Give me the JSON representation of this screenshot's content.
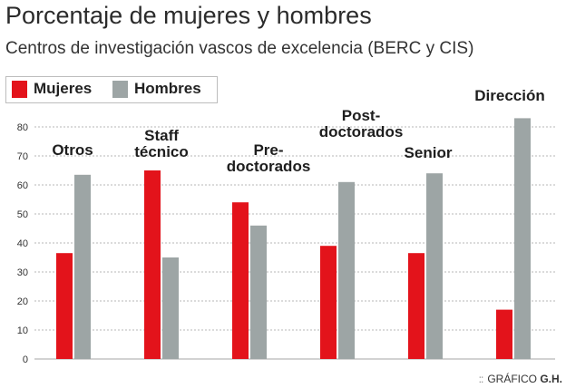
{
  "title": "Porcentaje de mujeres y hombres",
  "subtitle": "Centros de investigación vascos de excelencia (BERC y CIS)",
  "credit": {
    "prefix": "GRÁFICO",
    "name": "G.H."
  },
  "colors": {
    "mujeres": "#e3131b",
    "hombres": "#9da5a5",
    "grid": "#b7b7b7"
  },
  "chart_data": {
    "type": "bar",
    "categories": [
      "Otros",
      "Staff técnico",
      "Pre-doctorados",
      "Post-doctorados",
      "Senior",
      "Dirección"
    ],
    "category_label_lines": [
      [
        "Otros"
      ],
      [
        "Staff",
        "técnico"
      ],
      [
        "Pre-",
        "doctorados"
      ],
      [
        "Post-",
        "doctorados"
      ],
      [
        "Senior"
      ],
      [
        "Dirección"
      ]
    ],
    "series": [
      {
        "name": "Mujeres",
        "values": [
          36.5,
          65,
          54,
          39,
          36.5,
          17
        ]
      },
      {
        "name": "Hombres",
        "values": [
          63.5,
          35,
          46,
          61,
          64,
          83
        ]
      }
    ],
    "ylim": [
      0,
      80
    ],
    "yticks": [
      0,
      10,
      20,
      30,
      40,
      50,
      60,
      70,
      80
    ],
    "grid": true,
    "legend": "top-left"
  }
}
